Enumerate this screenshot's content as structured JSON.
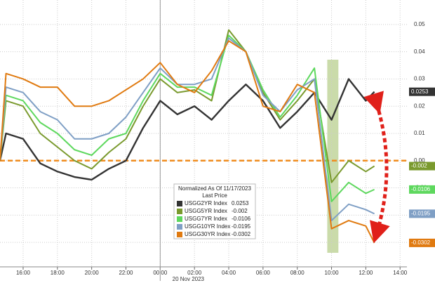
{
  "chart_data": {
    "type": "line",
    "x": [
      14.65,
      15,
      16,
      17,
      18,
      19,
      20,
      21,
      22,
      23,
      24,
      25,
      26,
      27,
      28,
      29,
      30,
      31,
      32,
      33,
      34,
      35,
      36,
      36.5
    ],
    "series": [
      {
        "name": "USGG2YR Index",
        "color": "#333333",
        "values": [
          0,
          0.01,
          0.008,
          -0.001,
          -0.004,
          -0.006,
          -0.007,
          -0.003,
          0.0,
          0.012,
          0.022,
          0.017,
          0.02,
          0.015,
          0.022,
          0.028,
          0.022,
          0.012,
          0.018,
          0.025,
          0.015,
          0.03,
          0.022,
          0.0253
        ]
      },
      {
        "name": "USGG5YR Index",
        "color": "#7a9a2e",
        "values": [
          0,
          0.022,
          0.02,
          0.01,
          0.005,
          0.0,
          -0.003,
          0.003,
          0.008,
          0.02,
          0.03,
          0.025,
          0.026,
          0.022,
          0.048,
          0.04,
          0.025,
          0.015,
          0.022,
          0.03,
          -0.008,
          0.0,
          -0.004,
          -0.002
        ]
      },
      {
        "name": "USGG7YR Index",
        "color": "#5ed85e",
        "values": [
          0,
          0.024,
          0.022,
          0.014,
          0.01,
          0.004,
          0.002,
          0.008,
          0.01,
          0.022,
          0.032,
          0.027,
          0.027,
          0.024,
          0.046,
          0.04,
          0.026,
          0.016,
          0.024,
          0.034,
          -0.015,
          -0.008,
          -0.012,
          -0.0106
        ]
      },
      {
        "name": "USGG10YR Index",
        "color": "#7f9fc5",
        "values": [
          0,
          0.027,
          0.025,
          0.018,
          0.015,
          0.008,
          0.008,
          0.01,
          0.016,
          0.025,
          0.034,
          0.028,
          0.028,
          0.03,
          0.045,
          0.04,
          0.024,
          0.018,
          0.026,
          0.03,
          -0.022,
          -0.016,
          -0.018,
          -0.0195
        ]
      },
      {
        "name": "USGG30YR Index",
        "color": "#e07a10",
        "values": [
          0,
          0.032,
          0.03,
          0.027,
          0.027,
          0.02,
          0.02,
          0.022,
          0.026,
          0.03,
          0.036,
          0.028,
          0.025,
          0.033,
          0.044,
          0.04,
          0.02,
          0.018,
          0.028,
          0.025,
          -0.025,
          -0.022,
          -0.024,
          -0.0302
        ]
      }
    ],
    "xlim": [
      14.65,
      38.4
    ],
    "xticks": [
      {
        "value": 16,
        "label": "16:00"
      },
      {
        "value": 18,
        "label": "18:00"
      },
      {
        "value": 20,
        "label": "20:00"
      },
      {
        "value": 22,
        "label": "22:00"
      },
      {
        "value": 24,
        "label": "00:00"
      },
      {
        "value": 26,
        "label": "02:00"
      },
      {
        "value": 28,
        "label": "04:00"
      },
      {
        "value": 30,
        "label": "06:00"
      },
      {
        "value": 32,
        "label": "08:00"
      },
      {
        "value": 34,
        "label": "10:00"
      },
      {
        "value": 36,
        "label": "12:00"
      },
      {
        "value": 38,
        "label": "14:00"
      }
    ],
    "ylim": [
      -0.039,
      0.059
    ],
    "yticks": [
      0.05,
      0.04,
      0.03,
      0.02,
      0.01,
      {
        "value": 0,
        "label": "0.00"
      },
      -0.01,
      -0.02,
      -0.03
    ],
    "grid": true,
    "date_label": {
      "value": 24,
      "label": "20 Nov 2023"
    },
    "reference_line": {
      "value": 0,
      "color": "#f08c1e"
    },
    "highlight_x": [
      33.75,
      34.4
    ],
    "legend": {
      "title": "Normalized As Of 11/17/2023",
      "subtitle": "Last Price"
    }
  }
}
